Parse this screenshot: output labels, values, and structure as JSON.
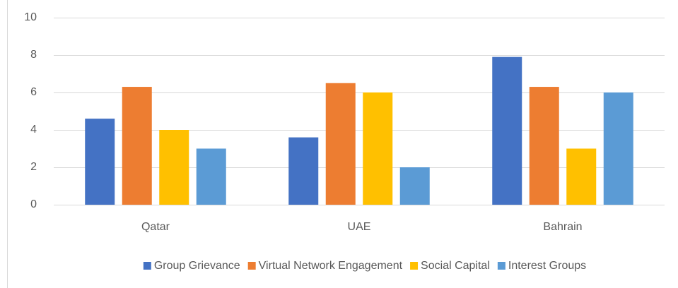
{
  "chart_data": {
    "type": "bar",
    "categories": [
      "Qatar",
      "UAE",
      "Bahrain"
    ],
    "series": [
      {
        "name": "Group Grievance",
        "color": "#4472c4",
        "values": [
          4.6,
          3.6,
          7.9
        ]
      },
      {
        "name": "Virtual Network Engagement",
        "color": "#ed7d31",
        "values": [
          6.3,
          6.5,
          6.3
        ]
      },
      {
        "name": "Social Capital",
        "color": "#ffc000",
        "values": [
          4.0,
          6.0,
          3.0
        ]
      },
      {
        "name": "Interest Groups",
        "color": "#5b9bd5",
        "values": [
          3.0,
          2.0,
          6.0
        ]
      }
    ],
    "ylim": [
      0,
      10
    ],
    "yticks": [
      0,
      2,
      4,
      6,
      8,
      10
    ],
    "grid": true,
    "legend": "bottom"
  }
}
